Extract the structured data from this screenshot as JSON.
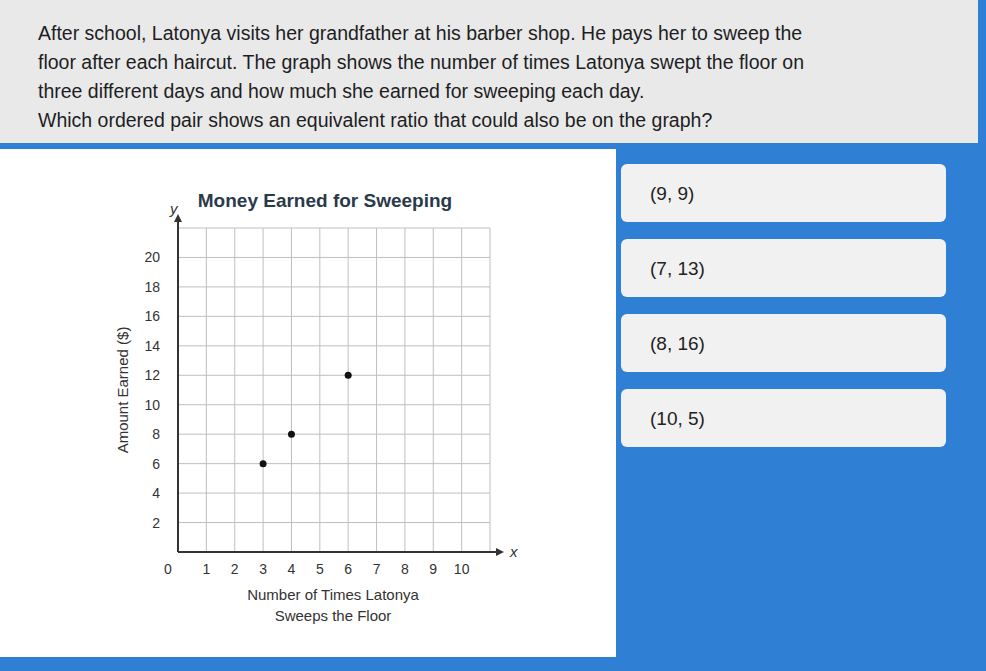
{
  "question_lines": [
    "After school, Latonya visits her grandfather at his barber shop. He pays her to sweep the",
    "floor after each haircut. The graph shows the number of times Latonya swept the floor on",
    "three different days and how much she earned for sweeping each day.",
    "Which ordered pair shows an equivalent ratio that could also be on the graph?"
  ],
  "choices": [
    "(9, 9)",
    "(7, 13)",
    "(8, 16)",
    "(10, 5)"
  ],
  "chart_data": {
    "type": "scatter",
    "title": "Money Earned for Sweeping",
    "x_label": [
      "Number of Times Latonya",
      "Sweeps the Floor"
    ],
    "y_label": "Amount Earned ($)",
    "x_axis_letter": "x",
    "y_axis_letter": "y",
    "x": [
      3,
      4,
      6
    ],
    "values": [
      6,
      8,
      12
    ],
    "color": "#111111",
    "marker": "circle",
    "xlim": [
      0,
      11
    ],
    "ylim": [
      0,
      22
    ],
    "xticks": [
      0,
      1,
      2,
      3,
      4,
      5,
      6,
      7,
      8,
      9,
      10
    ],
    "yticks": [
      2,
      4,
      6,
      8,
      10,
      12,
      14,
      16,
      18,
      20
    ],
    "grid": true
  }
}
